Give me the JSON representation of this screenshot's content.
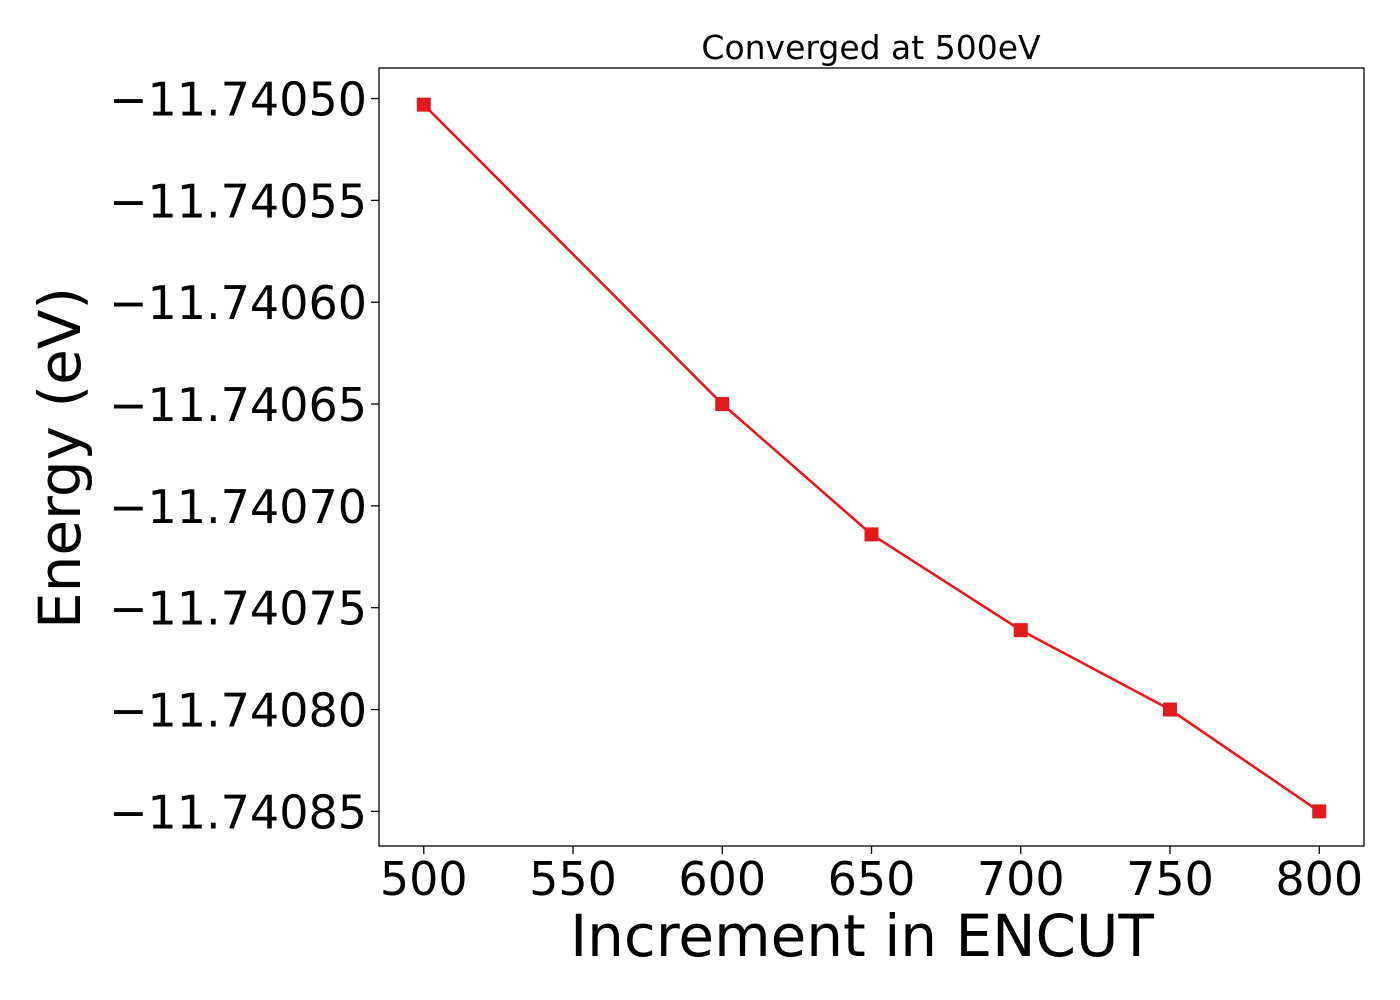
{
  "chart_data": {
    "type": "line",
    "title": "Converged at 500eV",
    "xlabel": "Increment in ENCUT",
    "ylabel": "Energy (eV)",
    "x": [
      500,
      600,
      650,
      700,
      750,
      800
    ],
    "series": [
      {
        "values": [
          -11.740503,
          -11.74065,
          -11.740714,
          -11.740761,
          -11.7408,
          -11.74085
        ],
        "color": "#e31a1c",
        "marker": "square"
      }
    ],
    "xticks": [
      500,
      550,
      600,
      650,
      700,
      750,
      800
    ],
    "xtick_labels": [
      "500",
      "550",
      "600",
      "650",
      "700",
      "750",
      "800"
    ],
    "yticks": [
      -11.7405,
      -11.74055,
      -11.7406,
      -11.74065,
      -11.7407,
      -11.74075,
      -11.7408,
      -11.74085
    ],
    "ytick_labels": [
      "−11.74050",
      "−11.74055",
      "−11.74060",
      "−11.74065",
      "−11.74070",
      "−11.74075",
      "−11.74080",
      "−11.74085"
    ],
    "xlim": [
      485,
      815
    ],
    "ylim": [
      -11.740867,
      -11.740485
    ],
    "grid": false,
    "legend": "none"
  }
}
